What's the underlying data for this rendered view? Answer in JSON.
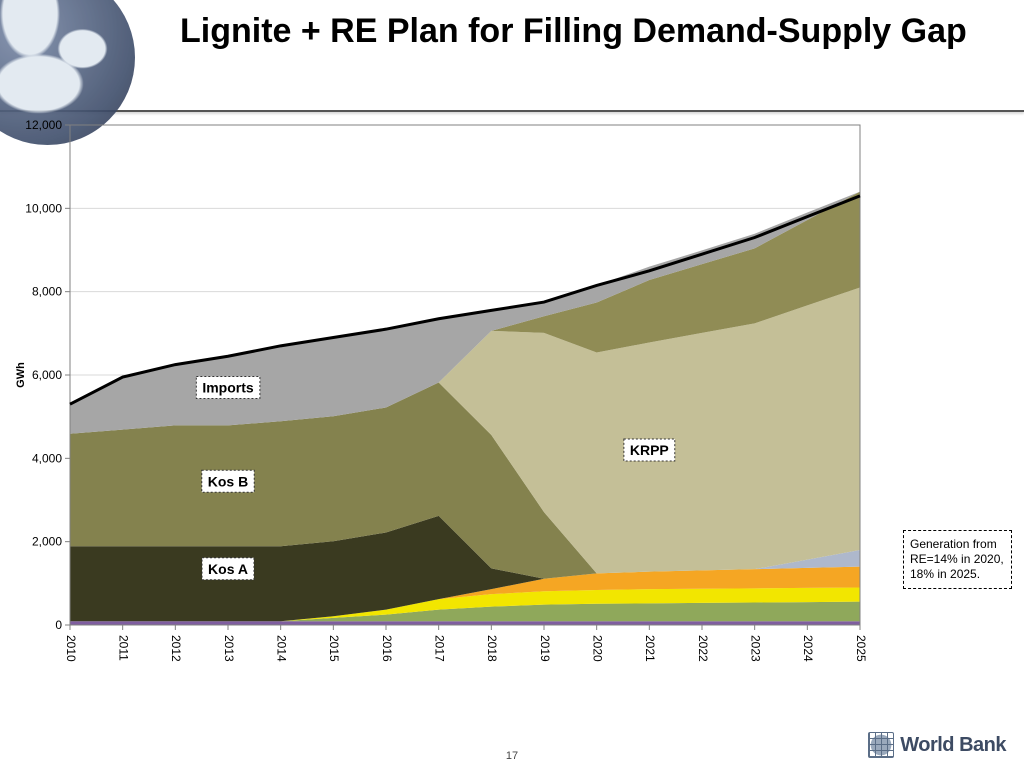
{
  "title": "Lignite + RE Plan for Filling Demand-Supply Gap",
  "page_number": "17",
  "logo_text": "World Bank",
  "annotation": "Generation from RE=14% in 2020, 18% in 2025.",
  "chart": {
    "type": "stacked-area",
    "y_label": "GWh",
    "ylim": [
      0,
      12000
    ],
    "ytick_step": 2000,
    "yticks": [
      "0",
      "2,000",
      "4,000",
      "6,000",
      "8,000",
      "10,000",
      "12,000"
    ],
    "x_categories": [
      "2010",
      "2011",
      "2012",
      "2013",
      "2014",
      "2015",
      "2016",
      "2017",
      "2018",
      "2019",
      "2020",
      "2021",
      "2022",
      "2023",
      "2024",
      "2025"
    ],
    "plot_bg": "#ffffff",
    "axis_color": "#808080",
    "grid_color": "#d9d9d9",
    "text_color": "#000000",
    "tick_fontsize": 12,
    "title_fontsize": 34,
    "total_line": {
      "color": "#000000",
      "width": 3,
      "values": [
        5300,
        5950,
        6250,
        6450,
        6700,
        6900,
        7100,
        7350,
        7550,
        7750,
        8150,
        8500,
        8900,
        9300,
        9800,
        10300
      ]
    },
    "labels": [
      {
        "text": "Imports",
        "x_year": "2013",
        "y_val": 5700
      },
      {
        "text": "Kos B",
        "x_year": "2013",
        "y_val": 3450
      },
      {
        "text": "Kos A",
        "x_year": "2013",
        "y_val": 1350
      },
      {
        "text": "KRPP",
        "x_year": "2021",
        "y_val": 4200
      }
    ],
    "label_style": {
      "font_weight": "bold",
      "font_size": 14,
      "bg": "#ffffff",
      "border": "#333333",
      "border_style": "dotted"
    },
    "series": [
      {
        "name": "purple",
        "color": "#7f5ea0",
        "values": [
          90,
          90,
          90,
          90,
          90,
          90,
          90,
          90,
          90,
          90,
          90,
          90,
          90,
          90,
          90,
          90
        ]
      },
      {
        "name": "green",
        "color": "#8fa85b",
        "values": [
          0,
          0,
          0,
          0,
          0,
          80,
          160,
          280,
          350,
          400,
          420,
          430,
          440,
          450,
          460,
          470
        ]
      },
      {
        "name": "yellow",
        "color": "#f2e600",
        "values": [
          0,
          0,
          0,
          0,
          0,
          40,
          120,
          250,
          300,
          320,
          330,
          340,
          340,
          340,
          340,
          340
        ]
      },
      {
        "name": "orange",
        "color": "#f5a623",
        "values": [
          0,
          0,
          0,
          0,
          0,
          0,
          0,
          0,
          120,
          300,
          400,
          420,
          440,
          460,
          480,
          500
        ]
      },
      {
        "name": "bluegrey",
        "color": "#aeb8cc",
        "values": [
          0,
          0,
          0,
          0,
          0,
          0,
          0,
          0,
          0,
          0,
          0,
          0,
          0,
          0,
          200,
          400
        ]
      },
      {
        "name": "kos_a",
        "color": "#3a3a20",
        "values": [
          1800,
          1800,
          1800,
          1800,
          1800,
          1800,
          1850,
          2000,
          500,
          0,
          0,
          0,
          0,
          0,
          0,
          0
        ]
      },
      {
        "name": "kos_b",
        "color": "#84824e",
        "values": [
          2700,
          2800,
          2900,
          2900,
          3000,
          3000,
          3000,
          3200,
          3200,
          1600,
          0,
          0,
          0,
          0,
          0,
          0
        ]
      },
      {
        "name": "krpp",
        "color": "#c4bf97",
        "values": [
          0,
          0,
          0,
          0,
          0,
          0,
          0,
          0,
          2500,
          4300,
          5300,
          5500,
          5700,
          5900,
          6100,
          6300
        ]
      },
      {
        "name": "new_olive",
        "color": "#908c55",
        "values": [
          0,
          0,
          0,
          0,
          0,
          0,
          0,
          0,
          0,
          400,
          1200,
          1500,
          1650,
          1800,
          2050,
          2300
        ]
      },
      {
        "name": "imports",
        "color": "#a6a6a6",
        "values": [
          710,
          1260,
          1460,
          1660,
          1810,
          1890,
          1880,
          1530,
          490,
          340,
          410,
          320,
          330,
          350,
          180,
          0
        ]
      }
    ]
  }
}
